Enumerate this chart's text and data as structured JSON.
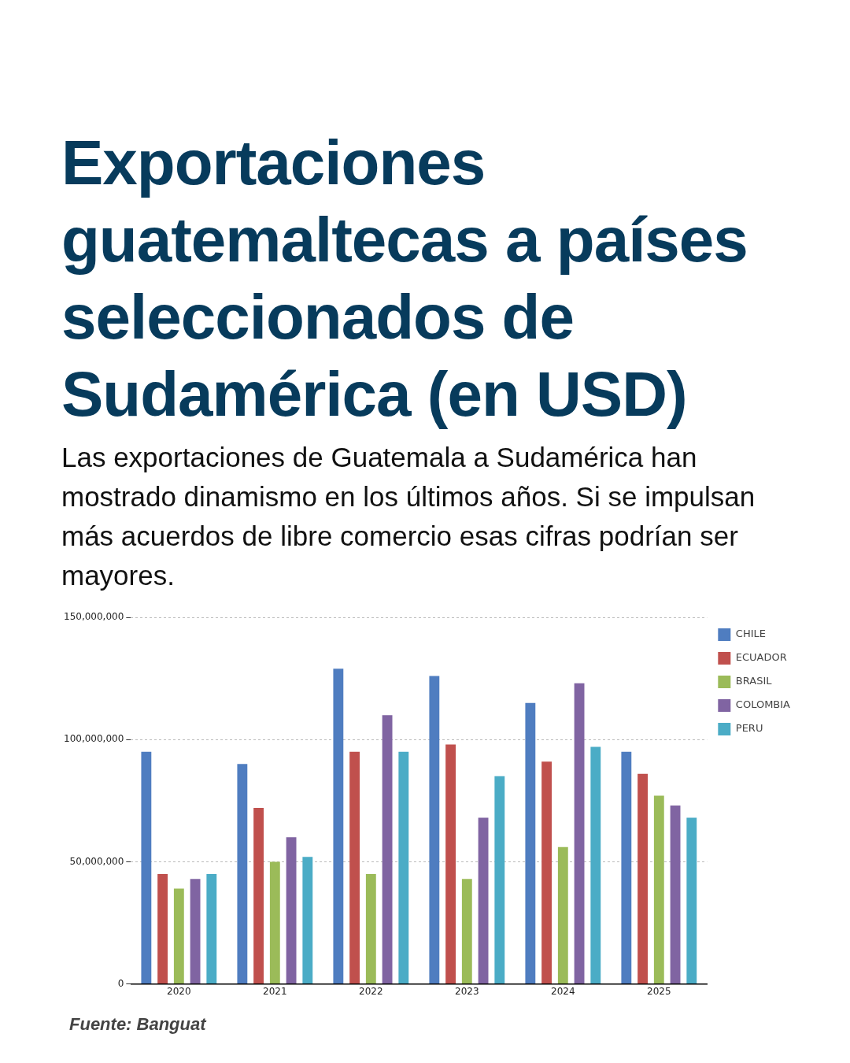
{
  "chart_data": {
    "type": "bar",
    "title": "Exportaciones guatemaltecas a países seleccionados de Sudamérica (en USD)",
    "subtitle": "Las exportaciones de Guatemala a Sudamérica han mostrado dinamismo en los últimos años.  Si se impulsan más acuerdos de libre comercio esas cifras podrían ser mayores.",
    "annotations": [
      "Fuente: Banguat"
    ],
    "categories": [
      "2020",
      "2021",
      "2022",
      "2023",
      "2024",
      "2025"
    ],
    "series": [
      {
        "name": "CHILE",
        "color": "#4f7dc0",
        "values": [
          95000000,
          90000000,
          129000000,
          126000000,
          115000000,
          95000000
        ]
      },
      {
        "name": "ECUADOR",
        "color": "#c0504d",
        "values": [
          45000000,
          72000000,
          95000000,
          98000000,
          91000000,
          86000000
        ]
      },
      {
        "name": "BRASIL",
        "color": "#9bbb59",
        "values": [
          39000000,
          50000000,
          45000000,
          43000000,
          56000000,
          77000000
        ]
      },
      {
        "name": "COLOMBIA",
        "color": "#8064a2",
        "values": [
          43000000,
          60000000,
          110000000,
          68000000,
          123000000,
          73000000
        ]
      },
      {
        "name": "PERU",
        "color": "#4bacc6",
        "values": [
          45000000,
          52000000,
          95000000,
          85000000,
          97000000,
          68000000
        ]
      }
    ],
    "ylim": [
      0,
      150000000
    ],
    "yticks": [
      {
        "value": 0,
        "label": "0"
      },
      {
        "value": 50000000,
        "label": "50,000,000"
      },
      {
        "value": 100000000,
        "label": "100,000,000"
      },
      {
        "value": 150000000,
        "label": "150,000,000"
      }
    ],
    "grid": "y",
    "legend": "top right"
  }
}
